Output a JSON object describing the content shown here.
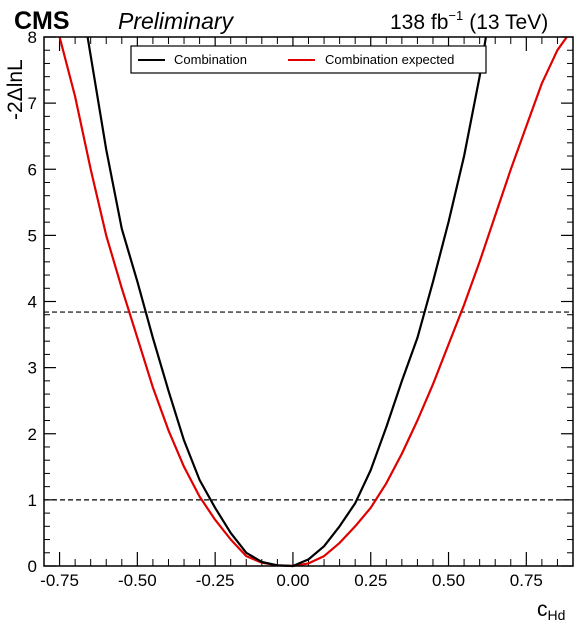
{
  "header": {
    "experiment": "CMS",
    "status": "Preliminary",
    "lumi_value": "138 fb",
    "lumi_exp": "−1",
    "energy": "(13 TeV)"
  },
  "chart_data": {
    "type": "line",
    "xlabel_main": "c",
    "xlabel_sub": "Hd",
    "ylabel": "-2ΔlnL",
    "xlim": [
      -0.8,
      0.9
    ],
    "ylim": [
      0,
      8
    ],
    "xticks": [
      "-0.75",
      "-0.50",
      "-0.25",
      "0.00",
      "0.25",
      "0.50",
      "0.75"
    ],
    "xtick_values": [
      -0.75,
      -0.5,
      -0.25,
      0.0,
      0.25,
      0.5,
      0.75
    ],
    "yticks": [
      "0",
      "1",
      "2",
      "3",
      "4",
      "5",
      "6",
      "7",
      "8"
    ],
    "ytick_values": [
      0,
      1,
      2,
      3,
      4,
      5,
      6,
      7,
      8
    ],
    "reference_lines": [
      1.0,
      3.84
    ],
    "legend_position": "top-center",
    "grid": false,
    "series": [
      {
        "name": "Combination",
        "color": "#000000",
        "x": [
          -0.66,
          -0.6,
          -0.55,
          -0.5,
          -0.45,
          -0.4,
          -0.35,
          -0.3,
          -0.25,
          -0.2,
          -0.15,
          -0.1,
          -0.05,
          0.0,
          0.05,
          0.1,
          0.15,
          0.2,
          0.25,
          0.3,
          0.35,
          0.4,
          0.45,
          0.5,
          0.55,
          0.6,
          0.62
        ],
        "y": [
          8.0,
          6.3,
          5.1,
          4.3,
          3.45,
          2.65,
          1.9,
          1.3,
          0.88,
          0.5,
          0.2,
          0.06,
          0.01,
          0.0,
          0.1,
          0.3,
          0.6,
          0.95,
          1.45,
          2.1,
          2.8,
          3.45,
          4.3,
          5.2,
          6.2,
          7.4,
          8.0
        ]
      },
      {
        "name": "Combination expected",
        "color": "#e00000",
        "x": [
          -0.75,
          -0.7,
          -0.65,
          -0.6,
          -0.55,
          -0.5,
          -0.45,
          -0.4,
          -0.35,
          -0.3,
          -0.25,
          -0.2,
          -0.15,
          -0.1,
          -0.05,
          0.0,
          0.05,
          0.1,
          0.15,
          0.2,
          0.25,
          0.3,
          0.35,
          0.4,
          0.45,
          0.5,
          0.55,
          0.6,
          0.65,
          0.7,
          0.75,
          0.8,
          0.85,
          0.88
        ],
        "y": [
          8.0,
          7.1,
          6.0,
          5.0,
          4.2,
          3.45,
          2.7,
          2.05,
          1.5,
          1.05,
          0.7,
          0.4,
          0.15,
          0.05,
          0.01,
          0.0,
          0.04,
          0.15,
          0.35,
          0.6,
          0.88,
          1.25,
          1.7,
          2.2,
          2.75,
          3.35,
          3.95,
          4.6,
          5.3,
          6.0,
          6.65,
          7.3,
          7.8,
          8.0
        ]
      }
    ]
  }
}
